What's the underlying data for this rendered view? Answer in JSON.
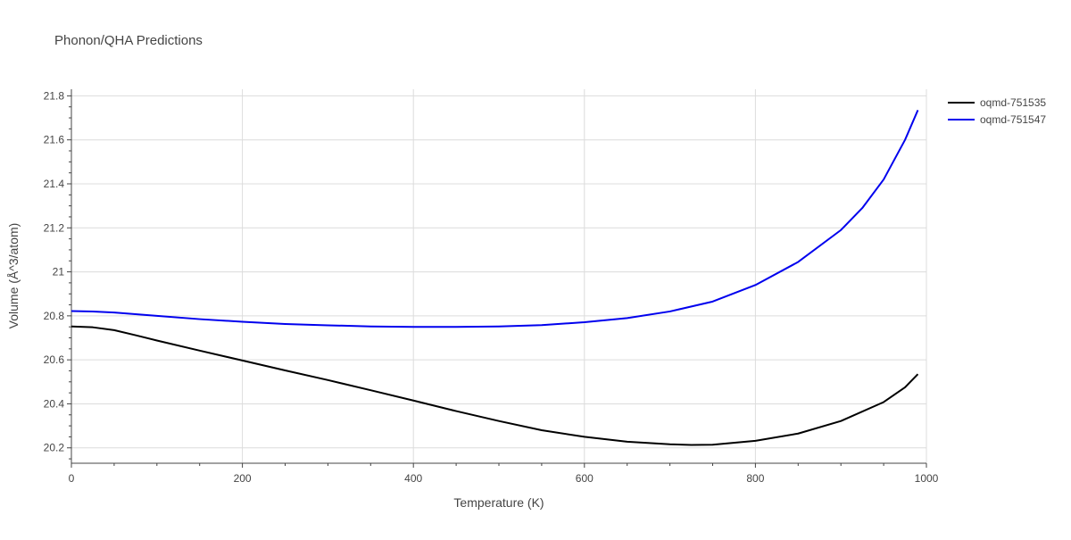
{
  "chart_data": {
    "type": "line",
    "title": "Phonon/QHA Predictions",
    "xlabel": "Temperature (K)",
    "ylabel": "Volume (Å^3/atom)",
    "xlim": [
      0,
      1000
    ],
    "ylim": [
      20.13,
      21.83
    ],
    "xticks": [
      0,
      200,
      400,
      600,
      800,
      1000
    ],
    "xtick_labels": [
      "0",
      "200",
      "400",
      "600",
      "800",
      "1000"
    ],
    "yticks": [
      20.2,
      20.4,
      20.6,
      20.8,
      21,
      21.2,
      21.4,
      21.6,
      21.8
    ],
    "ytick_labels": [
      "20.2",
      "20.4",
      "20.6",
      "20.8",
      "21",
      "21.2",
      "21.4",
      "21.6",
      "21.8"
    ],
    "grid": true,
    "legend_position": "top-right",
    "series": [
      {
        "name": "oqmd-751535",
        "color": "#000000",
        "x": [
          0,
          25,
          50,
          75,
          100,
          150,
          200,
          250,
          300,
          350,
          400,
          450,
          500,
          550,
          600,
          650,
          700,
          725,
          750,
          800,
          850,
          900,
          950,
          975,
          990
        ],
        "y": [
          20.752,
          20.748,
          20.735,
          20.712,
          20.688,
          20.642,
          20.597,
          20.552,
          20.508,
          20.462,
          20.415,
          20.367,
          20.322,
          20.28,
          20.25,
          20.228,
          20.216,
          20.213,
          20.214,
          20.232,
          20.265,
          20.322,
          20.408,
          20.475,
          20.535
        ]
      },
      {
        "name": "oqmd-751547",
        "color": "#0000ee",
        "x": [
          0,
          25,
          50,
          100,
          150,
          200,
          250,
          300,
          350,
          400,
          450,
          500,
          550,
          600,
          650,
          700,
          750,
          800,
          850,
          900,
          925,
          950,
          975,
          990
        ],
        "y": [
          20.822,
          20.82,
          20.815,
          20.8,
          20.785,
          20.773,
          20.763,
          20.757,
          20.752,
          20.75,
          20.75,
          20.752,
          20.758,
          20.771,
          20.79,
          20.82,
          20.865,
          20.94,
          21.045,
          21.19,
          21.29,
          21.42,
          21.6,
          21.735
        ]
      }
    ]
  }
}
